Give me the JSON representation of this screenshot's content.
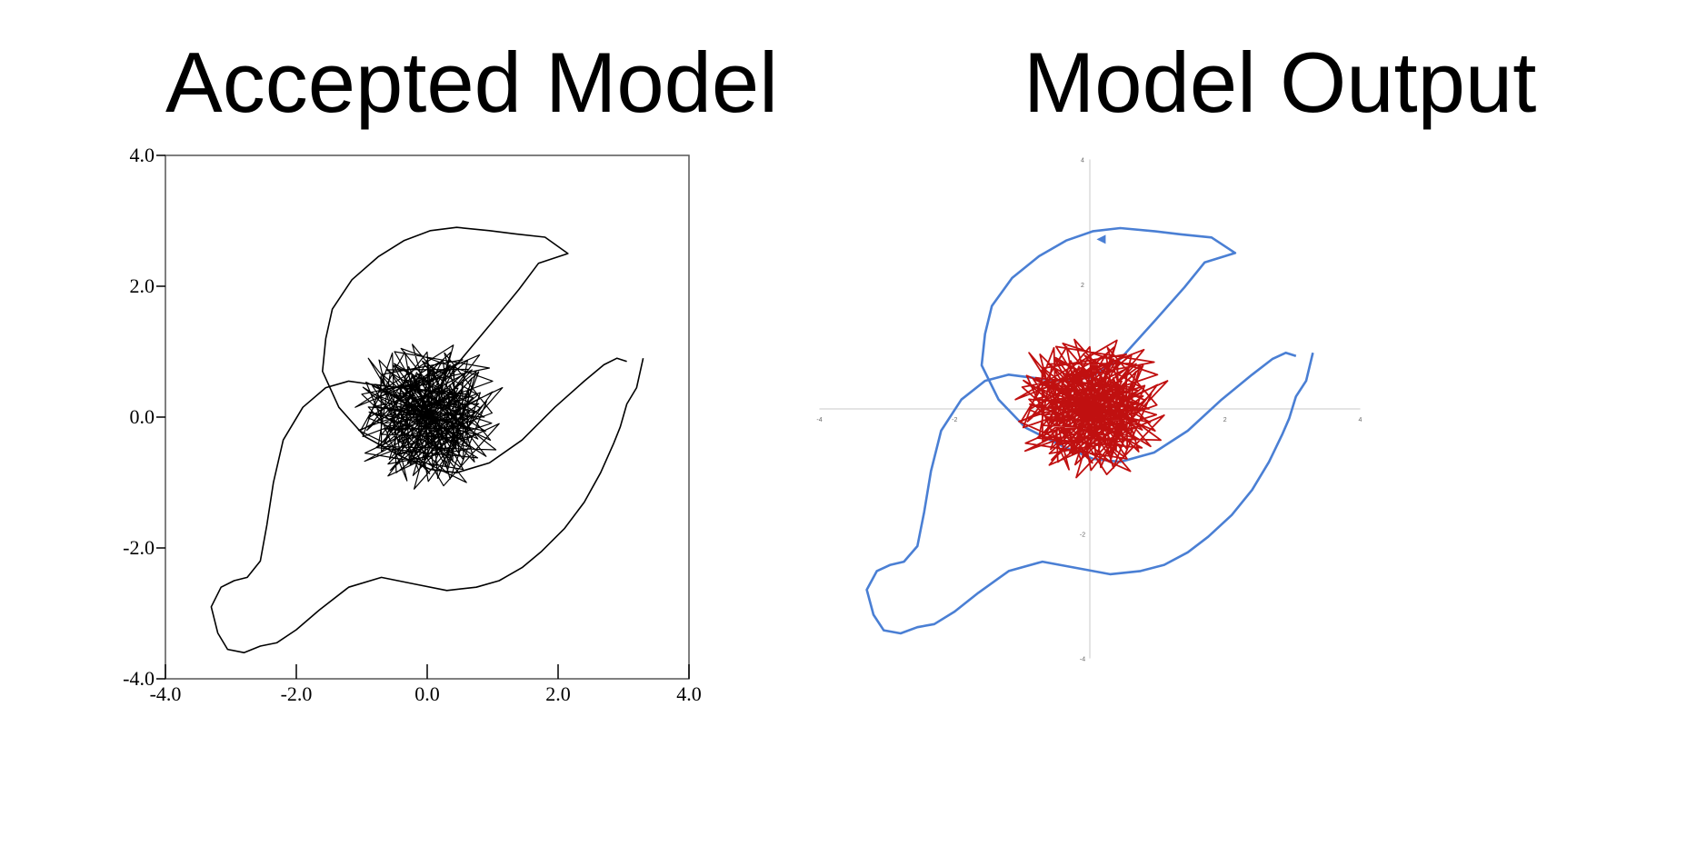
{
  "titles": {
    "left": "Accepted Model",
    "right": "Model Output"
  },
  "chart_data": [
    {
      "type": "line",
      "title": "Accepted Model",
      "xlabel": "",
      "ylabel": "",
      "xlim": [
        -4.0,
        4.0
      ],
      "ylim": [
        -4.0,
        4.0
      ],
      "x_ticks": [
        "-4.0",
        "-2.0",
        "0.0",
        "2.0",
        "4.0"
      ],
      "y_ticks": [
        "-4.0",
        "-2.0",
        "0.0",
        "2.0",
        "4.0"
      ],
      "grid": false,
      "frame": "box",
      "colors": {
        "orbit": "#000000",
        "core": "#000000"
      },
      "series": [
        {
          "x": [
            3.3,
            3.2,
            3.05,
            2.95,
            2.85,
            2.65,
            2.4,
            2.1,
            1.75,
            1.45,
            1.1,
            0.75,
            0.3,
            -0.2,
            -0.7,
            -1.2,
            -1.65,
            -2.0,
            -2.3,
            -2.55,
            -2.8,
            -3.05,
            -3.2,
            -3.3,
            -3.15,
            -2.95,
            -2.75,
            -2.55,
            -2.45,
            -2.35,
            -2.2,
            -1.9,
            -1.55,
            -1.2,
            -0.85,
            -0.45,
            0.0,
            0.45,
            0.95,
            1.4,
            1.7,
            2.15,
            1.8,
            1.35,
            0.95,
            0.45,
            0.05,
            -0.35,
            -0.75,
            -1.15,
            -1.45,
            -1.55,
            -1.6,
            -1.35,
            -0.95,
            -0.4,
            0.05,
            0.45,
            0.95,
            1.45,
            1.95,
            2.4,
            2.7,
            2.9,
            3.05
          ],
          "y": [
            0.9,
            0.45,
            0.2,
            -0.15,
            -0.4,
            -0.85,
            -1.3,
            -1.7,
            -2.05,
            -2.3,
            -2.5,
            -2.6,
            -2.65,
            -2.55,
            -2.45,
            -2.6,
            -2.95,
            -3.25,
            -3.45,
            -3.5,
            -3.6,
            -3.55,
            -3.3,
            -2.9,
            -2.6,
            -2.5,
            -2.45,
            -2.2,
            -1.65,
            -1.0,
            -0.35,
            0.15,
            0.45,
            0.55,
            0.5,
            0.45,
            0.5,
            0.8,
            1.4,
            1.95,
            2.35,
            2.5,
            2.75,
            2.8,
            2.85,
            2.9,
            2.85,
            2.7,
            2.45,
            2.1,
            1.65,
            1.2,
            0.7,
            0.15,
            -0.3,
            -0.6,
            -0.8,
            -0.85,
            -0.7,
            -0.35,
            0.15,
            0.55,
            0.8,
            0.9,
            0.85
          ]
        },
        {
          "x": [
            0.0,
            0.35,
            -0.3,
            0.7,
            -0.8,
            0.9,
            -0.4,
            1.0,
            -1.05,
            0.6,
            -0.9,
            0.25,
            1.1,
            -0.6,
            0.8,
            -1.1,
            0.4,
            -0.2,
            1.15,
            -0.95,
            0.55,
            -0.5,
            0.95,
            -1.0,
            0.3,
            0.75,
            -0.7,
            1.05,
            -0.35,
            0.0
          ],
          "y": [
            0.0,
            0.8,
            -0.7,
            0.3,
            0.5,
            -0.6,
            1.05,
            0.55,
            -0.2,
            -1.0,
            0.9,
            -1.05,
            -0.1,
            -0.9,
            0.95,
            0.15,
            1.1,
            -1.1,
            0.45,
            -0.55,
            -0.8,
            1.0,
            0.75,
            0.35,
            -0.85,
            0.7,
            -0.45,
            -0.5,
            0.6,
            0.0
          ]
        }
      ]
    },
    {
      "type": "line",
      "title": "Model Output",
      "xlabel": "",
      "ylabel": "",
      "xlim": [
        -4,
        4
      ],
      "ylim": [
        -4,
        4
      ],
      "x_ticks": [
        "-4",
        "-2",
        "2",
        "4"
      ],
      "y_ticks": [
        "4",
        "2",
        "-2",
        "-4"
      ],
      "grid": false,
      "frame": "center-axes",
      "colors": {
        "orbit": "#4a7fd4",
        "core": "#c01010"
      },
      "series": [
        {
          "x": [
            3.3,
            3.2,
            3.05,
            2.95,
            2.85,
            2.65,
            2.4,
            2.1,
            1.75,
            1.45,
            1.1,
            0.75,
            0.3,
            -0.2,
            -0.7,
            -1.2,
            -1.65,
            -2.0,
            -2.3,
            -2.55,
            -2.8,
            -3.05,
            -3.2,
            -3.3,
            -3.15,
            -2.95,
            -2.75,
            -2.55,
            -2.45,
            -2.35,
            -2.2,
            -1.9,
            -1.55,
            -1.2,
            -0.85,
            -0.45,
            0.0,
            0.45,
            0.95,
            1.4,
            1.7,
            2.15,
            1.8,
            1.35,
            0.95,
            0.45,
            0.05,
            -0.35,
            -0.75,
            -1.15,
            -1.45,
            -1.55,
            -1.6,
            -1.35,
            -0.95,
            -0.4,
            0.05,
            0.45,
            0.95,
            1.45,
            1.95,
            2.4,
            2.7,
            2.9,
            3.05
          ],
          "y": [
            0.9,
            0.45,
            0.2,
            -0.15,
            -0.4,
            -0.85,
            -1.3,
            -1.7,
            -2.05,
            -2.3,
            -2.5,
            -2.6,
            -2.65,
            -2.55,
            -2.45,
            -2.6,
            -2.95,
            -3.25,
            -3.45,
            -3.5,
            -3.6,
            -3.55,
            -3.3,
            -2.9,
            -2.6,
            -2.5,
            -2.45,
            -2.2,
            -1.65,
            -1.0,
            -0.35,
            0.15,
            0.45,
            0.55,
            0.5,
            0.45,
            0.5,
            0.8,
            1.4,
            1.95,
            2.35,
            2.5,
            2.75,
            2.8,
            2.85,
            2.9,
            2.85,
            2.7,
            2.45,
            2.1,
            1.65,
            1.2,
            0.7,
            0.15,
            -0.3,
            -0.6,
            -0.8,
            -0.85,
            -0.7,
            -0.35,
            0.15,
            0.55,
            0.8,
            0.9,
            0.85
          ]
        },
        {
          "x": [
            0.0,
            0.35,
            -0.3,
            0.7,
            -0.8,
            0.9,
            -0.4,
            1.0,
            -1.05,
            0.6,
            -0.9,
            0.25,
            1.1,
            -0.6,
            0.8,
            -1.1,
            0.4,
            -0.2,
            1.15,
            -0.95,
            0.55,
            -0.5,
            0.95,
            -1.0,
            0.3,
            0.75,
            -0.7,
            1.05,
            -0.35,
            0.0
          ],
          "y": [
            0.0,
            0.8,
            -0.7,
            0.3,
            0.5,
            -0.6,
            1.05,
            0.55,
            -0.2,
            -1.0,
            0.9,
            -1.05,
            -0.1,
            -0.9,
            0.95,
            0.15,
            1.1,
            -1.1,
            0.45,
            -0.55,
            -0.8,
            1.0,
            0.75,
            0.35,
            -0.85,
            0.7,
            -0.45,
            -0.5,
            0.6,
            0.0
          ]
        }
      ]
    }
  ]
}
